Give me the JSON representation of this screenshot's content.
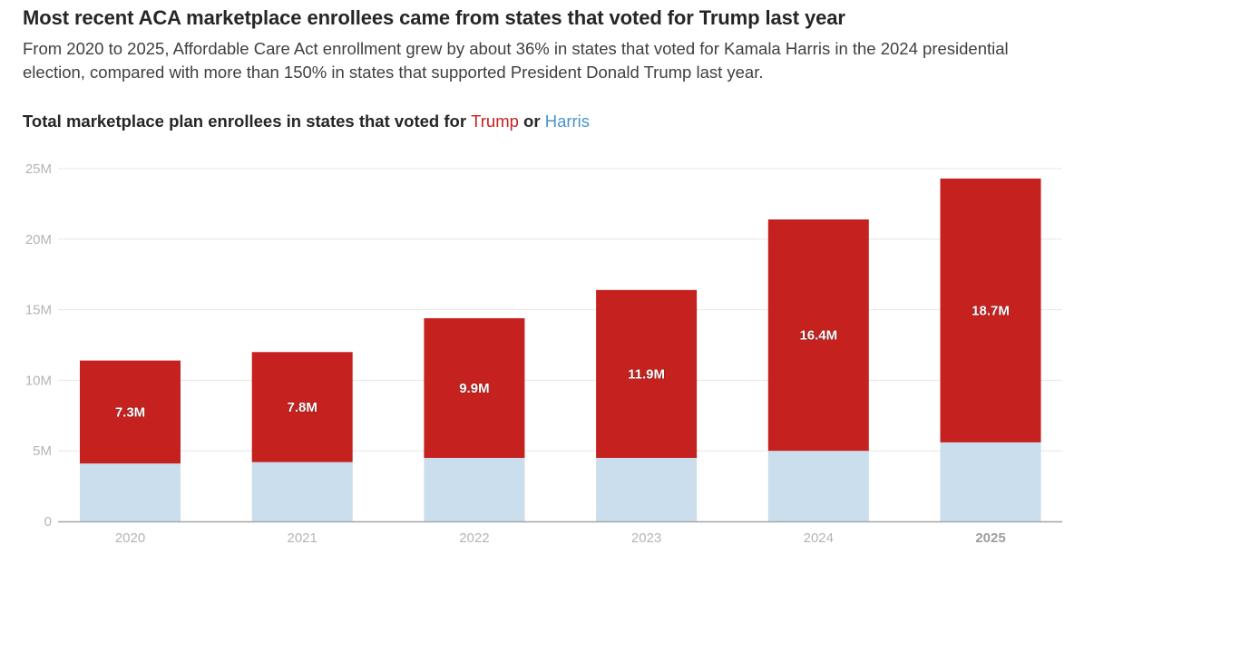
{
  "headline": "Most recent ACA marketplace enrollees came from states that voted for Trump last year",
  "dek": "From 2020 to 2025, Affordable Care Act enrollment grew by about 36% in states that voted for Kamala Harris in the 2024 presidential election, compared with more than 150% in states that supported President Donald Trump last year.",
  "chart_title": {
    "prefix": "Total marketplace plan enrollees in states that voted for ",
    "trump": "Trump",
    "connector": " or ",
    "harris": "Harris"
  },
  "colors": {
    "trump": "#c4211f",
    "harris": "#cadeed",
    "grid": "#e6e6e6",
    "axis": "#a6a6a6"
  },
  "chart_data": {
    "type": "bar",
    "stacked": true,
    "title": "Total marketplace plan enrollees in states that voted for Trump or Harris",
    "categories": [
      "2020",
      "2021",
      "2022",
      "2023",
      "2024",
      "2025"
    ],
    "highlight_category": "2025",
    "series": [
      {
        "name": "Harris",
        "color": "#cadeed",
        "values": [
          4.1,
          4.2,
          4.5,
          4.5,
          5.0,
          5.6
        ]
      },
      {
        "name": "Trump",
        "color": "#c4211f",
        "values": [
          7.3,
          7.8,
          9.9,
          11.9,
          16.4,
          18.7
        ],
        "data_labels": [
          "7.3M",
          "7.8M",
          "9.9M",
          "11.9M",
          "16.4M",
          "18.7M"
        ]
      }
    ],
    "ylim": [
      0,
      25
    ],
    "yticks": [
      0,
      5,
      10,
      15,
      20,
      25
    ],
    "ytick_labels": [
      "0",
      "5M",
      "10M",
      "15M",
      "20M",
      "25M"
    ],
    "grid": true,
    "xlabel": "",
    "ylabel": ""
  }
}
